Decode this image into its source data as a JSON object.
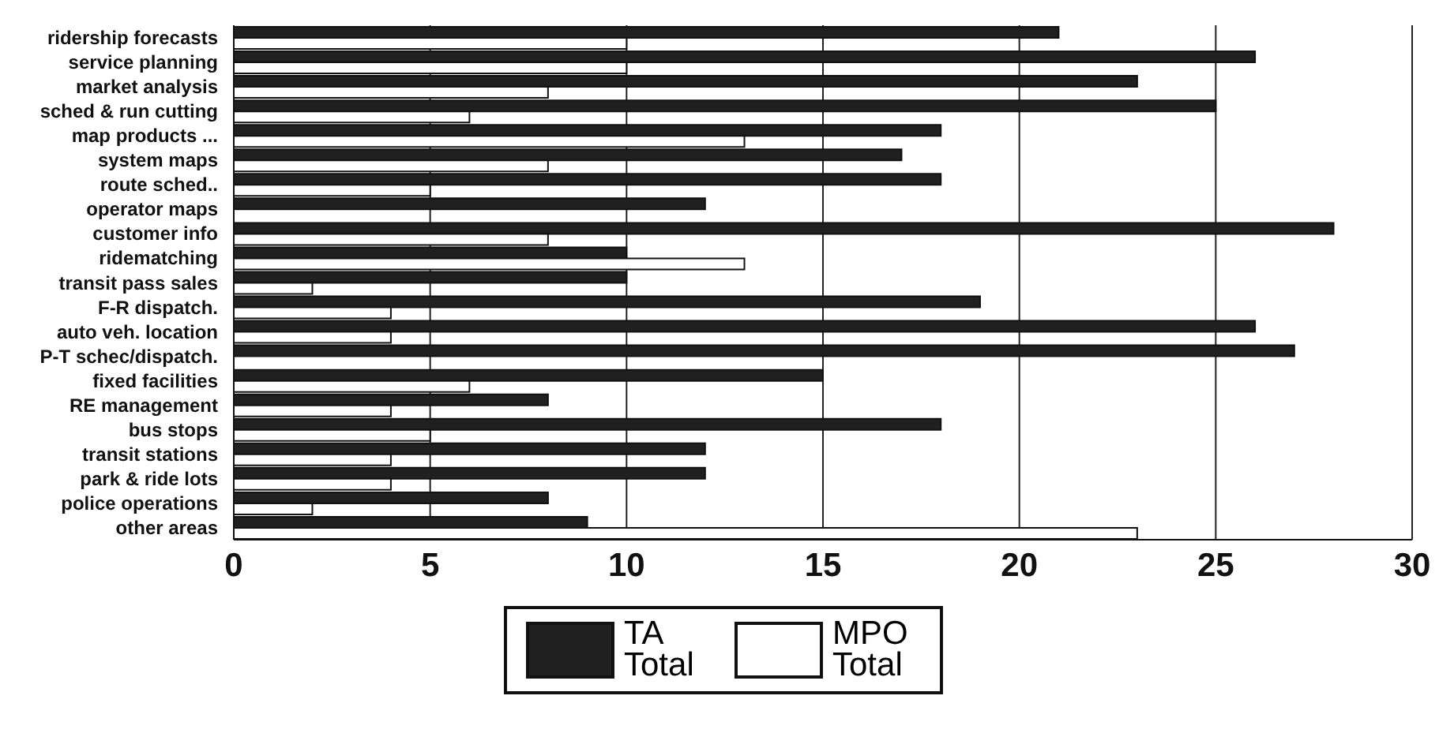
{
  "chart_data": {
    "type": "bar",
    "orientation": "horizontal",
    "categories": [
      "ridership forecasts",
      "service planning",
      "market analysis",
      "sched & run cutting",
      "map products ...",
      "system maps",
      "route sched..",
      "operator maps",
      "customer info",
      "ridematching",
      "transit pass sales",
      "F-R dispatch.",
      "auto veh. location",
      "P-T schec/dispatch.",
      "fixed facilities",
      "RE management",
      "bus stops",
      "transit stations",
      "park & ride lots",
      "police operations",
      "other areas"
    ],
    "series": [
      {
        "name": "TA Total",
        "color": "#202020",
        "values": [
          21,
          26,
          23,
          25,
          18,
          17,
          18,
          12,
          28,
          10,
          10,
          19,
          26,
          27,
          15,
          8,
          18,
          12,
          12,
          8,
          9
        ]
      },
      {
        "name": "MPO Total",
        "color": "#ffffff",
        "values": [
          10,
          10,
          8,
          6,
          13,
          8,
          5,
          0,
          8,
          13,
          2,
          4,
          4,
          0,
          6,
          4,
          5,
          4,
          4,
          2,
          23
        ]
      }
    ],
    "xlim": [
      0,
      30
    ],
    "xticks": [
      0,
      5,
      10,
      15,
      20,
      25,
      30
    ],
    "grid": "x",
    "legend": "bottom"
  }
}
